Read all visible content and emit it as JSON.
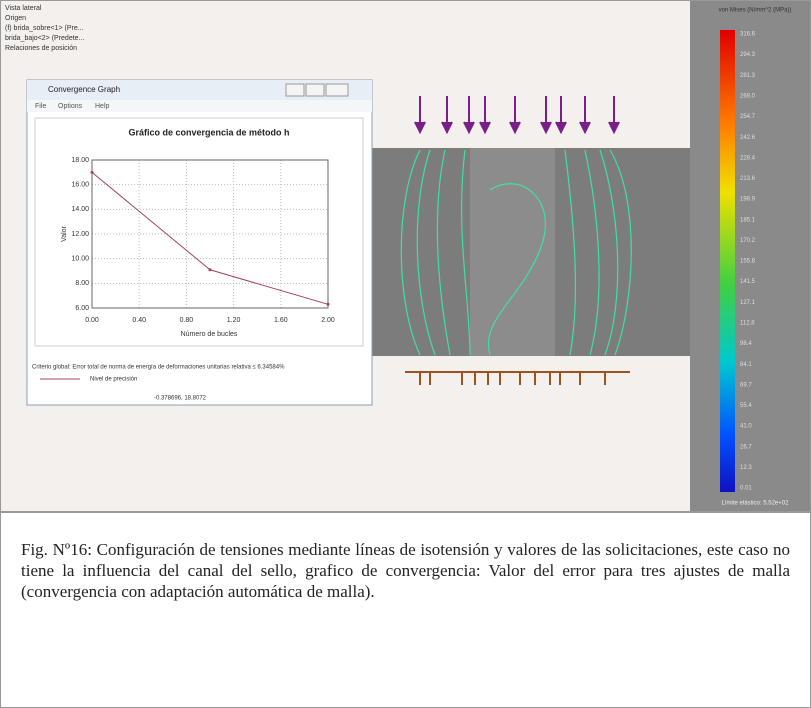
{
  "tree": {
    "items": [
      "Vista lateral",
      "Origen",
      "(f) brida_sobre<1> (Pre...",
      "brida_bajo<2> (Predete...",
      "Relaciones de posición"
    ]
  },
  "window": {
    "title": "Convergence Graph",
    "menu": [
      "File",
      "Options",
      "Help"
    ],
    "criterion": "Criterio global: Error total de norma de energía de deformaciones unitarias relativa ≤ 6.34584%",
    "coords": "-0.378696, 18.8072"
  },
  "chart_data": {
    "type": "line",
    "title": "Gráfico de convergencia de método h",
    "x_label": "Número de bucles",
    "y_label": "Valor",
    "x": [
      0,
      1,
      2
    ],
    "series": [
      {
        "name": "Nivel de precisión",
        "color": "#a0445a",
        "values": [
          17.0,
          9.1,
          6.3
        ]
      }
    ],
    "xlim": [
      0,
      2
    ],
    "ylim": [
      6,
      18
    ],
    "xticks": [
      {
        "value": 0,
        "label": "0.00"
      },
      {
        "value": 0.4,
        "label": "0.40"
      },
      {
        "value": 0.8,
        "label": "0.80"
      },
      {
        "value": 1.2,
        "label": "1.20"
      },
      {
        "value": 1.6,
        "label": "1.60"
      },
      {
        "value": 2,
        "label": "2.00"
      }
    ],
    "yticks": [
      {
        "value": 6,
        "label": "6.00"
      },
      {
        "value": 8,
        "label": "8.00"
      },
      {
        "value": 10,
        "label": "10.00"
      },
      {
        "value": 12,
        "label": "12.00"
      },
      {
        "value": 14,
        "label": "14.00"
      },
      {
        "value": 16,
        "label": "16.00"
      },
      {
        "value": 18,
        "label": "18.00"
      }
    ],
    "grid": true
  },
  "colorbar": {
    "title": "von Mises (N/mm^2 (MPa))",
    "labels": [
      "316.6",
      "294.3",
      "281.3",
      "268.0",
      "254.7",
      "242.6",
      "228.4",
      "213.6",
      "198.9",
      "185.1",
      "170.2",
      "155.8",
      "141.5",
      "127.1",
      "112.8",
      "98.4",
      "84.1",
      "69.7",
      "55.4",
      "41.0",
      "26.7",
      "12.3",
      "0.01"
    ],
    "footer": "Límite elástico: 5.52e+02"
  },
  "caption": "Fig. Nº16: Configuración de tensiones mediante líneas de isotensión y valores de las solicitaciones, este caso no tiene la influencia del canal del sello, grafico de convergencia: Valor del error para tres ajustes de malla (convergencia con adaptación automática de malla)."
}
